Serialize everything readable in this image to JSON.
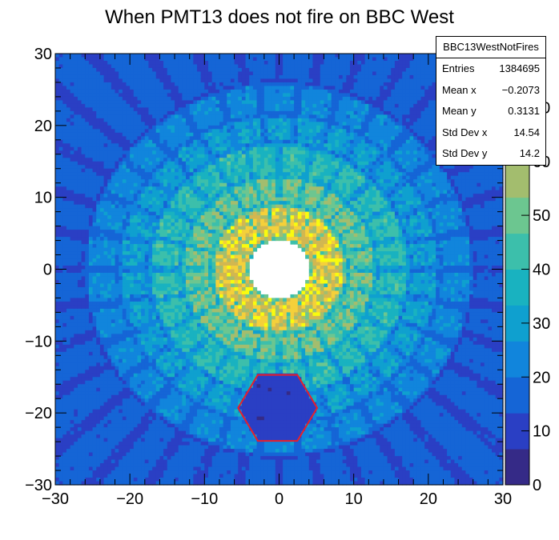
{
  "title": "When PMT13 does not fire on BBC West",
  "stats": {
    "name": "BBC13WestNotFires",
    "rows": [
      {
        "label": "Entries",
        "value": "1384695"
      },
      {
        "label": "Mean x",
        "value": "−0.2073"
      },
      {
        "label": "Mean y",
        "value": "0.3131"
      },
      {
        "label": "Std Dev x",
        "value": "14.54"
      },
      {
        "label": "Std Dev y",
        "value": "14.2"
      }
    ]
  },
  "chart_data": {
    "type": "heatmap",
    "title": "When PMT13 does not fire on BBC West",
    "xlim": [
      -30,
      30
    ],
    "ylim": [
      -30,
      30
    ],
    "x_ticks": [
      -30,
      -20,
      -10,
      0,
      10,
      20,
      30
    ],
    "y_ticks": [
      -30,
      -20,
      -10,
      0,
      10,
      20,
      30
    ],
    "x_tick_labels": [
      "−30",
      "−20",
      "−10",
      "0",
      "10",
      "20",
      "30"
    ],
    "y_tick_labels": [
      "−30",
      "−20",
      "−10",
      "0",
      "10",
      "20",
      "30"
    ],
    "z_range": [
      0,
      80
    ],
    "z_ticks": [
      0,
      10,
      20,
      30,
      40,
      50,
      60,
      70
    ],
    "colormap": [
      "#352a87",
      "#2a3fc4",
      "#1565d6",
      "#1185dc",
      "#0fa0cf",
      "#19b2c0",
      "#3cbfab",
      "#6cc690",
      "#a3bd6e",
      "#d2b750",
      "#f5d03a",
      "#f9fb0e"
    ],
    "rings": [
      {
        "r_in": 4.0,
        "r_out": 9.0,
        "level": 66,
        "segments": 18
      },
      {
        "r_in": 9.0,
        "r_out": 13.0,
        "level": 50,
        "segments": 24
      },
      {
        "r_in": 13.0,
        "r_out": 17.5,
        "level": 40,
        "segments": 24
      },
      {
        "r_in": 17.5,
        "r_out": 21.5,
        "level": 30,
        "segments": 30
      },
      {
        "r_in": 21.5,
        "r_out": 26.0,
        "level": 24,
        "segments": 30
      },
      {
        "r_in": 26.0,
        "r_out": 42.0,
        "level": 16,
        "segments": 36
      }
    ],
    "hole_radius": 4.0,
    "deficit_hexagon": {
      "center": [
        -0.2,
        -19.3
      ],
      "radius": 5.3,
      "level": 8,
      "line_color": "#e8202a"
    }
  }
}
